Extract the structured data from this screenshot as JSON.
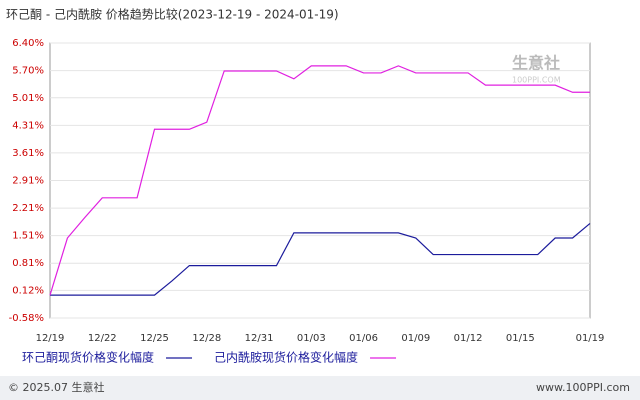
{
  "chart_data": {
    "type": "line",
    "title": "环己酮 - 己内酰胺 价格趋势比较(2023-12-19 - 2024-01-19)",
    "x": [
      "12/19",
      null,
      null,
      "12/22",
      null,
      null,
      "12/25",
      null,
      null,
      "12/28",
      null,
      null,
      "12/31",
      null,
      null,
      "01/03",
      null,
      null,
      "01/06",
      null,
      null,
      "01/09",
      null,
      null,
      "01/12",
      null,
      null,
      "01/15",
      null,
      null,
      null,
      "01/19"
    ],
    "series": [
      {
        "name": "环己酮现货价格变化幅度",
        "color": "#1c1c9c",
        "values": [
          0,
          0,
          0,
          0,
          0,
          0,
          0,
          0.36,
          0.75,
          0.75,
          0.75,
          0.75,
          0.75,
          0.75,
          1.58,
          1.58,
          1.58,
          1.58,
          1.58,
          1.58,
          1.58,
          1.45,
          1.03,
          1.03,
          1.03,
          1.03,
          1.03,
          1.03,
          1.03,
          1.45,
          1.45,
          1.82
        ]
      },
      {
        "name": "己内酰胺现货价格变化幅度",
        "color": "#e020e0",
        "values": [
          0,
          1.45,
          1.97,
          2.47,
          2.47,
          2.47,
          4.21,
          4.21,
          4.21,
          4.39,
          5.69,
          5.69,
          5.69,
          5.69,
          5.49,
          5.82,
          5.82,
          5.82,
          5.64,
          5.64,
          5.82,
          5.64,
          5.64,
          5.64,
          5.64,
          5.33,
          5.33,
          5.33,
          5.33,
          5.33,
          5.15,
          5.15
        ]
      }
    ],
    "ylim": [
      -0.58,
      6.4
    ],
    "yticks": [
      {
        "value": -0.58,
        "label": "-0.58%"
      },
      {
        "value": 0.12,
        "label": "0.12%"
      },
      {
        "value": 0.81,
        "label": "0.81%"
      },
      {
        "value": 1.51,
        "label": "1.51%"
      },
      {
        "value": 2.21,
        "label": "2.21%"
      },
      {
        "value": 2.91,
        "label": "2.91%"
      },
      {
        "value": 3.61,
        "label": "3.61%"
      },
      {
        "value": 4.31,
        "label": "4.31%"
      },
      {
        "value": 5.01,
        "label": "5.01%"
      },
      {
        "value": 5.7,
        "label": "5.70%"
      },
      {
        "value": 6.4,
        "label": "6.40%"
      }
    ],
    "grid": true,
    "watermark": {
      "name": "生意社",
      "site": "100PPI.COM"
    },
    "footer": {
      "copyright": "© 2025.07 生意社",
      "url": "www.100PPI.com"
    }
  }
}
